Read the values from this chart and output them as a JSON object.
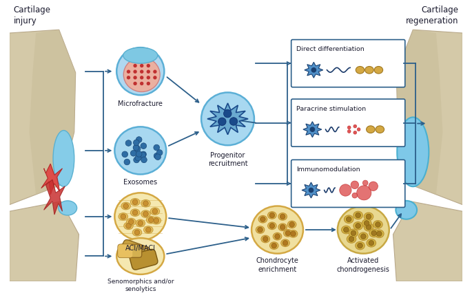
{
  "title_left": "Cartilage\ninjury",
  "title_right": "Cartilage\nregeneration",
  "background_color": "#ffffff",
  "labels": {
    "microfracture": "Microfracture",
    "exosomes": "Exosomes",
    "progenitor": "Progenitor\nrecruitment",
    "aci_maci": "ACI/MACI",
    "senomorphics": "Senomorphics and/or\nsenolytics",
    "chondrocyte": "Chondrocyte\nenrichment",
    "activated": "Activated\nchondrogenesis",
    "direct": "Direct differentiation",
    "paracrine": "Paracrine stimulation",
    "immuno": "Immunomodulation"
  },
  "colors": {
    "blue_light": "#87ceeb",
    "blue_mid": "#5bafd6",
    "blue_dark": "#2e6da4",
    "blue_stem": "#4a90c4",
    "yellow_light": "#f5deb3",
    "yellow_mid": "#e8c97a",
    "yellow_dark": "#c8a84b",
    "gold": "#d4a843",
    "red": "#e05555",
    "red_dark": "#c0392b",
    "bone_color": "#d4c9a8",
    "cartilage_blue": "#7ec8e3",
    "arrow_color": "#2c5f8a",
    "box_border": "#2c5f8a",
    "text_dark": "#1a1a2e"
  }
}
